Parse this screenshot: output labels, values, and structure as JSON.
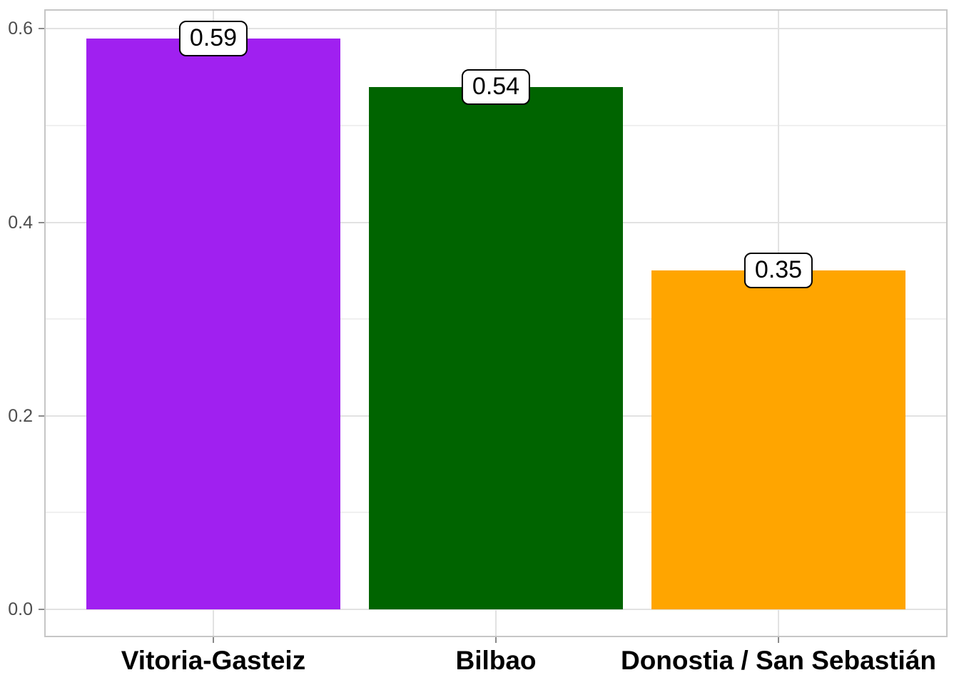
{
  "chart_data": {
    "type": "bar",
    "title": "",
    "xlabel": "",
    "ylabel": "",
    "categories": [
      "Vitoria-Gasteiz",
      "Bilbao",
      "Donostia / San Sebastián"
    ],
    "values": [
      0.59,
      0.54,
      0.35
    ],
    "value_labels": [
      "0.59",
      "0.54",
      "0.35"
    ],
    "bar_colors": [
      "#A020F0",
      "#006400",
      "#FFA500"
    ],
    "ylim": [
      0,
      0.62
    ],
    "y_ticks": [
      0.0,
      0.2,
      0.4,
      0.6
    ],
    "y_tick_labels": [
      "0.0",
      "0.2",
      "0.4",
      "0.6"
    ],
    "y_minor_ticks": [
      0.1,
      0.3,
      0.5
    ],
    "grid": true,
    "legend": "none"
  },
  "colors": {
    "background": "#FFFFFF",
    "panel_border": "#C6C6C6",
    "grid_major": "#E2E2E2",
    "grid_minor": "#F0F0F0",
    "tick_mark": "#8A8A8A",
    "y_axis_text": "#4D4D4D",
    "x_axis_text": "#000000",
    "label_box_bg": "#FFFFFF",
    "label_box_border": "#000000"
  }
}
